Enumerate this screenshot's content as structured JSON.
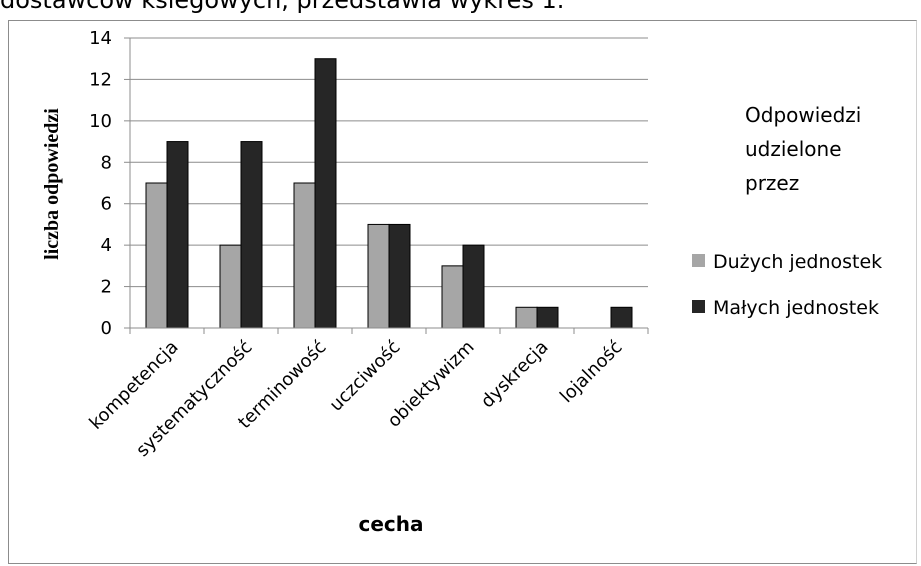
{
  "header_text": "dostawców ksiegowych, przedstawia wykres 1.",
  "chart_data": {
    "type": "bar",
    "categories": [
      "kompetencja",
      "systematyczność",
      "terminowość",
      "uczciwość",
      "obiektywizm",
      "dyskrecja",
      "lojalność"
    ],
    "series": [
      {
        "name": "Dużych jednostek",
        "values": [
          7,
          4,
          7,
          5,
          3,
          1,
          0
        ],
        "color": "#a6a6a6"
      },
      {
        "name": "Małych jednostek",
        "values": [
          9,
          9,
          13,
          5,
          4,
          1,
          1
        ],
        "color": "#262626"
      }
    ],
    "xlabel": "cecha",
    "ylabel": "liczba odpowiedzi",
    "ylim": [
      0,
      14
    ],
    "yticks": [
      "0",
      "2",
      "4",
      "6",
      "8",
      "10",
      "12",
      "14"
    ],
    "grid": true,
    "legend_title": [
      "Odpowiedzi",
      "udzielone",
      "przez"
    ],
    "legend_position": "right"
  }
}
